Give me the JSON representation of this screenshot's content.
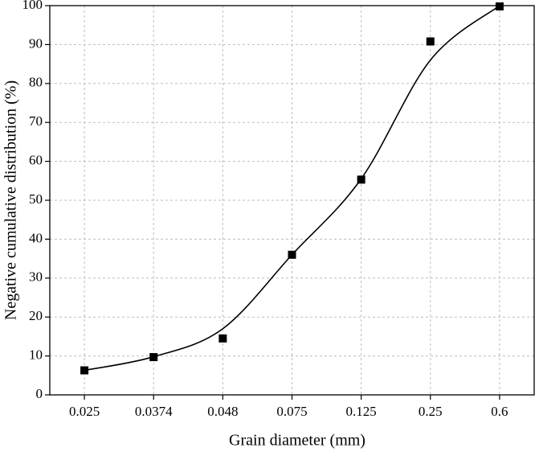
{
  "chart_data": {
    "type": "scatter",
    "xlabel": "Grain diameter (mm)",
    "ylabel": "Negative cumulative distribution (%)",
    "categories": [
      "0.025",
      "0.0374",
      "0.048",
      "0.075",
      "0.125",
      "0.25",
      "0.6"
    ],
    "series": [
      {
        "color": "#000000",
        "marker": "square",
        "values": [
          6.3,
          9.7,
          14.5,
          36,
          55.3,
          90.8,
          99.8
        ]
      },
      {
        "color": "#000000",
        "line": "smooth",
        "values": [
          6.3,
          9.8,
          17,
          36,
          55.5,
          86,
          100
        ]
      }
    ],
    "ylim": [
      0,
      100
    ],
    "yticks": [
      0,
      10,
      20,
      30,
      40,
      50,
      60,
      70,
      80,
      90,
      100
    ],
    "grid": true
  }
}
